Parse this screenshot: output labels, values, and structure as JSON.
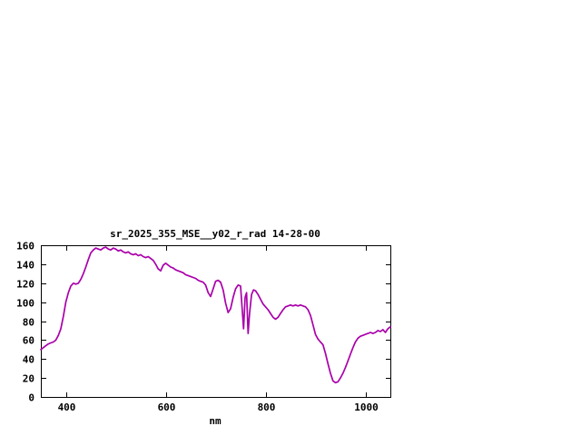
{
  "chart": {
    "title": "sr_2025_355_MSE__y02_r_rad 14-28-00",
    "xlabel": "nm"
  },
  "chart_data": {
    "type": "line",
    "title": "sr_2025_355_MSE__y02_r_rad 14-28-00",
    "xlabel": "nm",
    "ylabel": "",
    "xlim": [
      350,
      1050
    ],
    "ylim": [
      0,
      160
    ],
    "x_ticks": [
      400,
      600,
      800,
      1000
    ],
    "y_ticks": [
      0,
      20,
      40,
      60,
      80,
      100,
      120,
      140,
      160
    ],
    "grid": false,
    "legend_position": "none",
    "line_color": "#aa00aa",
    "axis_color": "#000000",
    "background_color": "#ffffff",
    "series": [
      {
        "name": "sr_2025_355_MSE__y02_r_rad",
        "x": [
          350,
          355,
          360,
          365,
          370,
          375,
          380,
          385,
          390,
          395,
          400,
          405,
          410,
          415,
          420,
          425,
          430,
          435,
          440,
          445,
          450,
          455,
          460,
          465,
          470,
          475,
          480,
          485,
          490,
          495,
          500,
          505,
          510,
          515,
          520,
          525,
          530,
          535,
          540,
          545,
          550,
          555,
          560,
          565,
          570,
          575,
          580,
          585,
          590,
          595,
          600,
          605,
          610,
          615,
          620,
          625,
          630,
          635,
          640,
          645,
          650,
          655,
          660,
          665,
          670,
          675,
          680,
          685,
          690,
          695,
          700,
          705,
          710,
          715,
          720,
          725,
          730,
          735,
          740,
          745,
          750,
          753,
          756,
          759,
          762,
          765,
          768,
          772,
          776,
          780,
          785,
          790,
          795,
          800,
          805,
          810,
          815,
          820,
          825,
          830,
          835,
          840,
          845,
          850,
          855,
          860,
          865,
          870,
          875,
          880,
          885,
          890,
          895,
          900,
          905,
          910,
          915,
          920,
          925,
          930,
          935,
          940,
          945,
          950,
          955,
          960,
          965,
          970,
          975,
          980,
          985,
          990,
          995,
          1000,
          1005,
          1010,
          1015,
          1020,
          1025,
          1030,
          1035,
          1040,
          1045,
          1050
        ],
        "y": [
          50,
          52,
          54,
          56,
          57,
          58,
          60,
          65,
          72,
          85,
          100,
          110,
          117,
          120,
          119,
          120,
          124,
          130,
          137,
          145,
          152,
          155,
          157,
          156,
          155,
          157,
          158,
          156,
          155,
          157,
          156,
          154,
          155,
          153,
          152,
          153,
          151,
          150,
          151,
          149,
          150,
          148,
          147,
          148,
          146,
          144,
          140,
          135,
          133,
          139,
          141,
          139,
          137,
          136,
          134,
          133,
          132,
          131,
          129,
          128,
          127,
          126,
          125,
          123,
          122,
          121,
          118,
          110,
          106,
          114,
          122,
          123,
          121,
          113,
          99,
          89,
          93,
          105,
          114,
          118,
          117,
          95,
          72,
          105,
          110,
          67,
          88,
          108,
          113,
          112,
          108,
          103,
          98,
          95,
          92,
          88,
          84,
          82,
          84,
          88,
          92,
          95,
          96,
          97,
          96,
          97,
          96,
          97,
          96,
          95,
          92,
          86,
          76,
          66,
          61,
          58,
          55,
          46,
          35,
          25,
          17,
          15,
          16,
          20,
          25,
          31,
          38,
          45,
          52,
          58,
          62,
          64,
          65,
          66,
          67,
          68,
          67,
          68,
          70,
          69,
          71,
          68,
          72,
          74
        ]
      }
    ]
  }
}
